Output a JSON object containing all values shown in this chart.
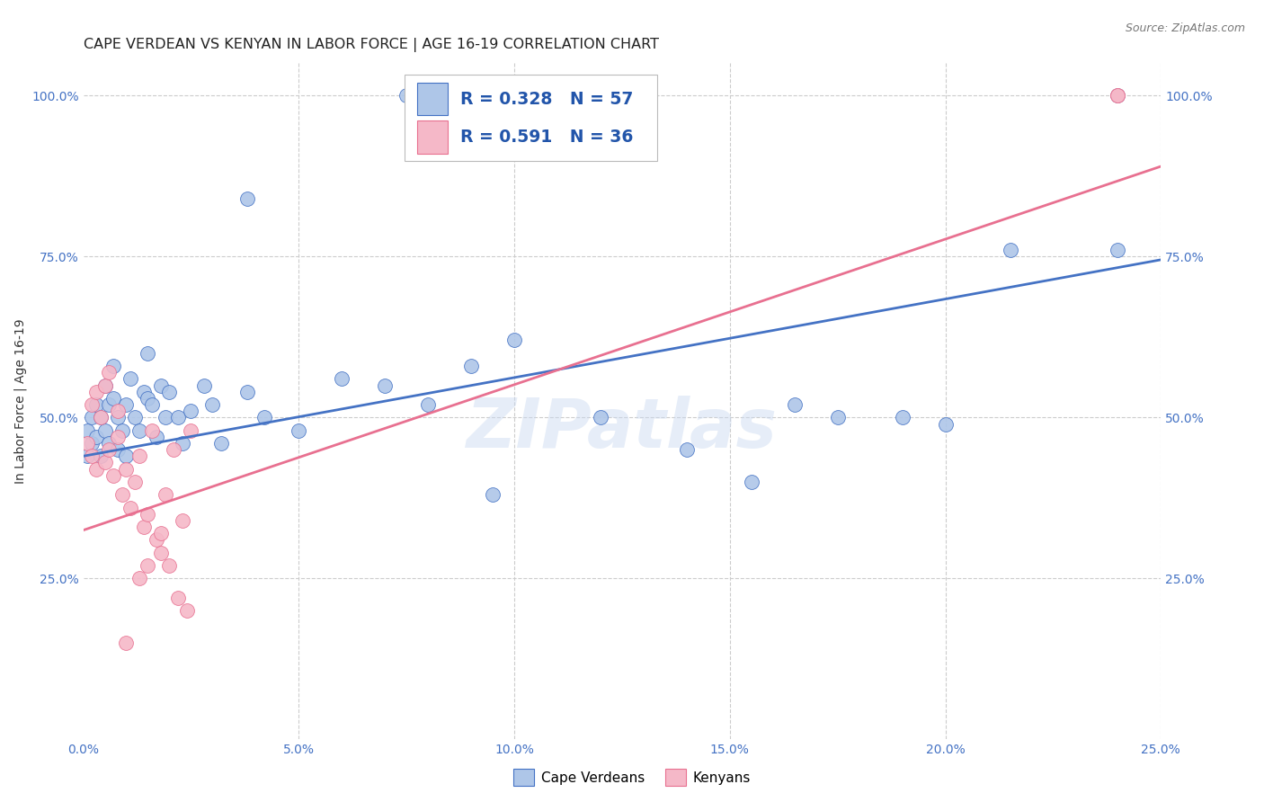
{
  "title": "CAPE VERDEAN VS KENYAN IN LABOR FORCE | AGE 16-19 CORRELATION CHART",
  "source": "Source: ZipAtlas.com",
  "ylabel": "In Labor Force | Age 16-19",
  "xlim": [
    0.0,
    0.25
  ],
  "ylim": [
    0.0,
    1.05
  ],
  "background_color": "#ffffff",
  "grid_color": "#cccccc",
  "watermark": "ZIPatlas",
  "cape_verdean_color": "#aec6e8",
  "kenyan_color": "#f5b8c8",
  "trendline_cv_color": "#4472c4",
  "trendline_kn_color": "#e87090",
  "tick_color": "#4472c4",
  "title_fontsize": 11.5,
  "axis_label_fontsize": 10,
  "tick_fontsize": 10,
  "legend_fontsize": 13,
  "source_fontsize": 9,
  "cv_trendline": [
    0.0,
    0.44,
    0.25,
    0.745
  ],
  "kn_trendline": [
    0.0,
    0.325,
    0.25,
    0.89
  ],
  "cape_verdean_x": [
    0.001,
    0.001,
    0.002,
    0.002,
    0.003,
    0.003,
    0.004,
    0.004,
    0.005,
    0.005,
    0.006,
    0.006,
    0.007,
    0.007,
    0.008,
    0.008,
    0.009,
    0.01,
    0.01,
    0.011,
    0.012,
    0.013,
    0.014,
    0.015,
    0.015,
    0.016,
    0.017,
    0.018,
    0.019,
    0.02,
    0.022,
    0.023,
    0.025,
    0.028,
    0.03,
    0.032,
    0.038,
    0.042,
    0.05,
    0.06,
    0.07,
    0.08,
    0.09,
    0.095,
    0.1,
    0.12,
    0.14,
    0.155,
    0.165,
    0.175,
    0.19,
    0.2,
    0.215,
    0.038,
    0.075,
    0.24,
    0.24
  ],
  "cape_verdean_y": [
    0.48,
    0.44,
    0.5,
    0.46,
    0.52,
    0.47,
    0.5,
    0.44,
    0.55,
    0.48,
    0.52,
    0.46,
    0.58,
    0.53,
    0.5,
    0.45,
    0.48,
    0.52,
    0.44,
    0.56,
    0.5,
    0.48,
    0.54,
    0.6,
    0.53,
    0.52,
    0.47,
    0.55,
    0.5,
    0.54,
    0.5,
    0.46,
    0.51,
    0.55,
    0.52,
    0.46,
    0.54,
    0.5,
    0.48,
    0.56,
    0.55,
    0.52,
    0.58,
    0.38,
    0.62,
    0.5,
    0.45,
    0.4,
    0.52,
    0.5,
    0.5,
    0.49,
    0.76,
    0.84,
    1.0,
    0.76,
    1.0
  ],
  "kenyan_x": [
    0.001,
    0.002,
    0.002,
    0.003,
    0.003,
    0.004,
    0.005,
    0.005,
    0.006,
    0.006,
    0.007,
    0.008,
    0.008,
    0.009,
    0.01,
    0.011,
    0.012,
    0.013,
    0.014,
    0.015,
    0.016,
    0.017,
    0.018,
    0.019,
    0.02,
    0.021,
    0.022,
    0.023,
    0.024,
    0.025,
    0.01,
    0.013,
    0.015,
    0.018,
    0.24,
    0.24
  ],
  "kenyan_y": [
    0.46,
    0.52,
    0.44,
    0.54,
    0.42,
    0.5,
    0.55,
    0.43,
    0.57,
    0.45,
    0.41,
    0.47,
    0.51,
    0.38,
    0.42,
    0.36,
    0.4,
    0.44,
    0.33,
    0.35,
    0.48,
    0.31,
    0.29,
    0.38,
    0.27,
    0.45,
    0.22,
    0.34,
    0.2,
    0.48,
    0.15,
    0.25,
    0.27,
    0.32,
    1.0,
    1.0
  ]
}
